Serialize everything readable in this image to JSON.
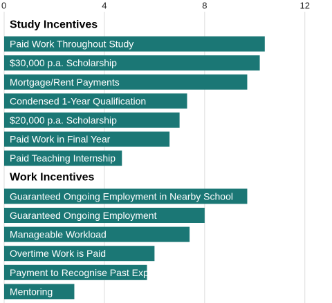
{
  "chart_data": {
    "type": "bar",
    "orientation": "horizontal",
    "color": "#1b7775",
    "xlim": [
      0,
      13
    ],
    "xticks": [
      0,
      4,
      8,
      12
    ],
    "grid": true,
    "groups": [
      {
        "name": "Study Incentives",
        "categories": [
          "Paid Work Throughout Study",
          "$30,000 p.a. Scholarship",
          "Mortgage/Rent Payments",
          "Condensed 1-Year Qualification",
          "$20,000 p.a. Scholarship",
          "Paid Work in Final Year",
          "Paid Teaching Internship"
        ],
        "values": [
          10.4,
          10.2,
          9.7,
          7.3,
          7.0,
          6.6,
          4.7
        ]
      },
      {
        "name": "Work Incentives",
        "categories": [
          "Guaranteed Ongoing Employment in Nearby School",
          "Guaranteed Ongoing Employment",
          "Manageable Workload",
          "Overtime Work is Paid",
          "Payment to Recognise Past Experience",
          "Mentoring"
        ],
        "values": [
          9.7,
          8.0,
          7.4,
          6.0,
          5.7,
          2.8
        ]
      }
    ]
  }
}
